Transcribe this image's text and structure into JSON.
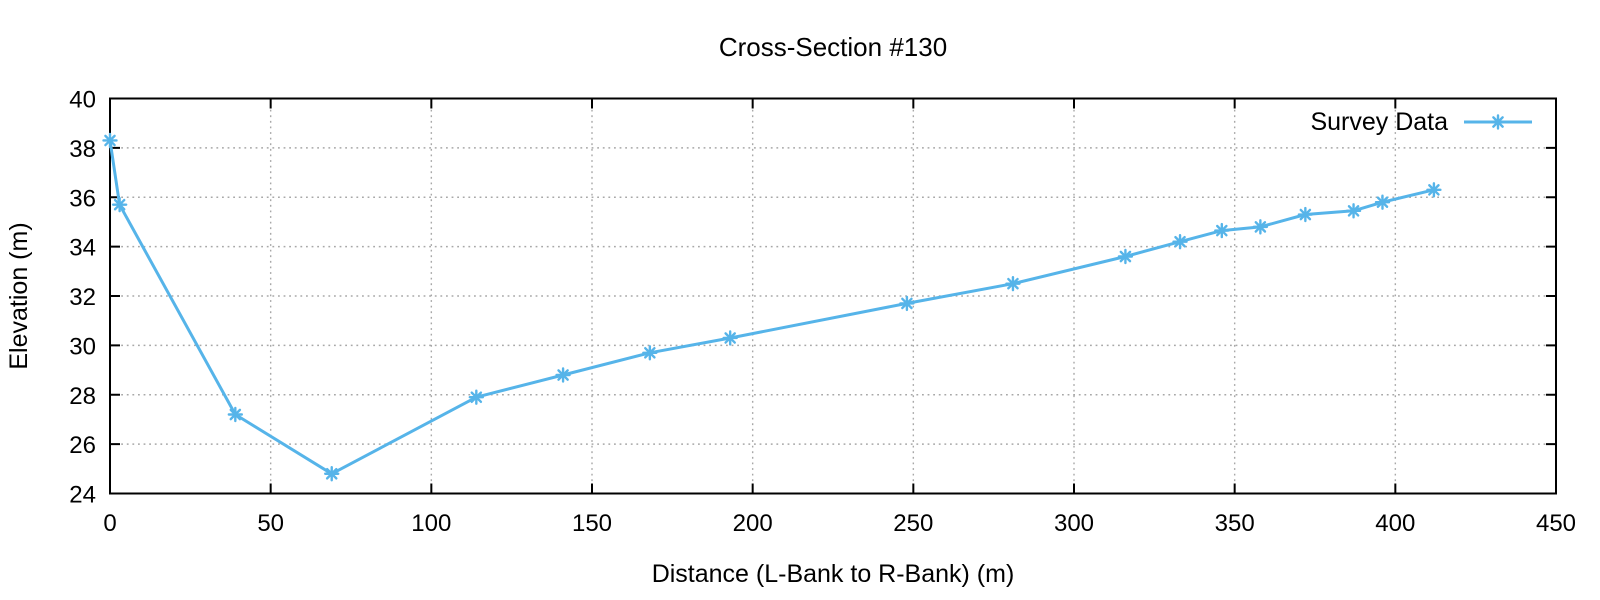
{
  "chart_data": {
    "type": "line",
    "title": "Cross-Section #130",
    "xlabel": "Distance (L-Bank to R-Bank) (m)",
    "ylabel": "Elevation (m)",
    "grid": true,
    "legend_position": "top-right-inside",
    "xlim": [
      0,
      450
    ],
    "ylim": [
      24,
      40
    ],
    "x_ticks": [
      0,
      50,
      100,
      150,
      200,
      250,
      300,
      350,
      400,
      450
    ],
    "y_ticks": [
      24,
      26,
      28,
      30,
      32,
      34,
      36,
      38,
      40
    ],
    "series": [
      {
        "name": "Survey Data",
        "color": "#56b4e9",
        "marker": "asterisk",
        "x": [
          0,
          3,
          39,
          69,
          114,
          141,
          168,
          193,
          248,
          281,
          316,
          333,
          346,
          358,
          372,
          387,
          396,
          412
        ],
        "y": [
          38.3,
          35.7,
          27.2,
          24.8,
          27.9,
          28.8,
          29.7,
          30.3,
          31.7,
          32.5,
          33.6,
          34.2,
          34.65,
          34.8,
          35.3,
          35.45,
          35.8,
          36.3
        ]
      }
    ]
  },
  "colors": {
    "accent": "#56b4e9",
    "grid": "#a8a8a8",
    "axis": "#000000",
    "background": "#ffffff"
  }
}
